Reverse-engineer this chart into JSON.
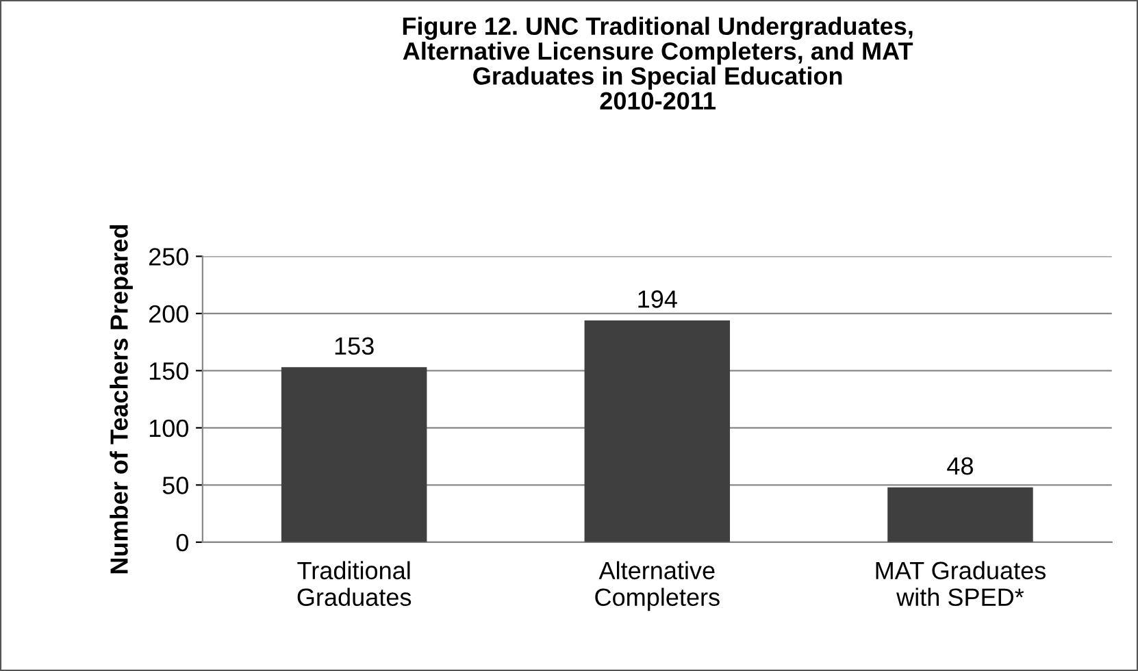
{
  "chart_data": {
    "type": "bar",
    "title": "Figure 12. UNC Traditional Undergraduates,\nAlternative Licensure Completers, and MAT\nGraduates in Special Education\n2010-2011",
    "ylabel": "Number of Teachers Prepared",
    "categories": [
      "Traditional\nGraduates",
      "Alternative\nCompleters",
      "MAT Graduates\nwith SPED*"
    ],
    "values": [
      153,
      194,
      48
    ],
    "color": "#3f3f3f",
    "ylim": [
      0,
      250
    ],
    "yticks": [
      0,
      50,
      100,
      150,
      200,
      250
    ],
    "grid": "y",
    "data_labels": true
  }
}
